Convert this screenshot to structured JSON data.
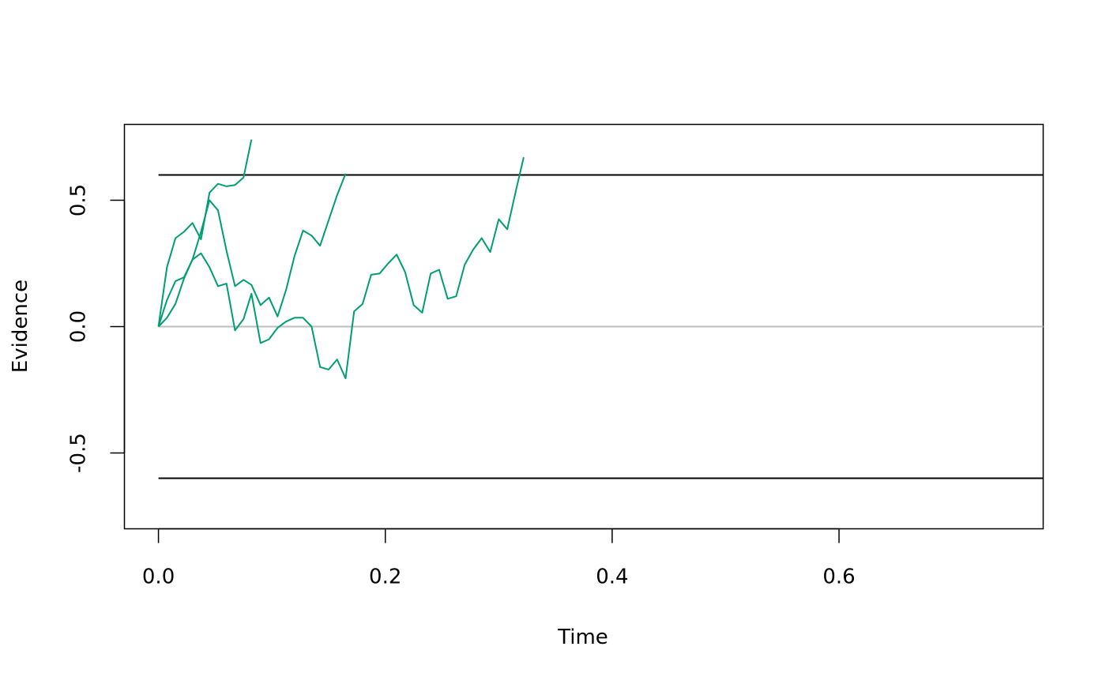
{
  "chart_data": {
    "type": "line",
    "title": "",
    "xlabel": "Time",
    "ylabel": "Evidence",
    "xlim": [
      -0.03,
      0.78
    ],
    "ylim": [
      -0.8,
      0.8
    ],
    "x_ticks": [
      {
        "value": 0.0,
        "label": "0.0"
      },
      {
        "value": 0.2,
        "label": "0.2"
      },
      {
        "value": 0.4,
        "label": "0.4"
      },
      {
        "value": 0.6,
        "label": "0.6"
      }
    ],
    "y_ticks": [
      {
        "value": -0.5,
        "label": "-0.5"
      },
      {
        "value": 0.0,
        "label": "0.0"
      },
      {
        "value": 0.5,
        "label": "0.5"
      }
    ],
    "grid": false,
    "legend": "none",
    "colors": {
      "series": "#009E73",
      "boundary": "#000000",
      "baseline": "#BEBEBE",
      "frame": "#000000"
    },
    "reference_lines": [
      {
        "kind": "upper-boundary",
        "y": 0.6,
        "x_start": 0.0,
        "color": "#000000"
      },
      {
        "kind": "lower-boundary",
        "y": -0.6,
        "x_start": 0.0,
        "color": "#000000"
      },
      {
        "kind": "baseline",
        "y": 0.0,
        "x_start": 0.0,
        "color": "#BEBEBE"
      }
    ],
    "series": [
      {
        "x": [
          0.0,
          0.0075,
          0.015,
          0.0225,
          0.03,
          0.0375,
          0.045,
          0.0525,
          0.06,
          0.0675,
          0.075,
          0.082
        ],
        "y": [
          0.0,
          0.235,
          0.35,
          0.375,
          0.41,
          0.345,
          0.53,
          0.565,
          0.555,
          0.56,
          0.59,
          0.74
        ]
      },
      {
        "x": [
          0.0,
          0.0075,
          0.015,
          0.0225,
          0.03,
          0.0375,
          0.045,
          0.0525,
          0.06,
          0.0675,
          0.075,
          0.082,
          0.09,
          0.0975,
          0.105,
          0.1125,
          0.12,
          0.1275,
          0.135,
          0.1425,
          0.15,
          0.1575,
          0.165
        ],
        "y": [
          0.0,
          0.105,
          0.18,
          0.195,
          0.265,
          0.375,
          0.5,
          0.46,
          0.3,
          0.16,
          0.185,
          0.165,
          0.085,
          0.115,
          0.04,
          0.145,
          0.28,
          0.38,
          0.36,
          0.32,
          0.42,
          0.52,
          0.605
        ]
      },
      {
        "x": [
          0.0,
          0.0075,
          0.015,
          0.0225,
          0.03,
          0.0375,
          0.045,
          0.0525,
          0.06,
          0.0675,
          0.075,
          0.082,
          0.09,
          0.0975,
          0.105,
          0.1125,
          0.12,
          0.1275,
          0.135,
          0.1425,
          0.15,
          0.1575,
          0.165,
          0.1725,
          0.18,
          0.1875,
          0.195,
          0.2025,
          0.21,
          0.2175,
          0.225,
          0.2325,
          0.24,
          0.2475,
          0.255,
          0.2625,
          0.27,
          0.2775,
          0.285,
          0.2925,
          0.3,
          0.3075,
          0.315,
          0.322
        ],
        "y": [
          0.0,
          0.035,
          0.09,
          0.19,
          0.265,
          0.29,
          0.235,
          0.16,
          0.17,
          -0.015,
          0.03,
          0.13,
          -0.065,
          -0.05,
          -0.005,
          0.02,
          0.035,
          0.035,
          0.0,
          -0.16,
          -0.17,
          -0.13,
          -0.205,
          0.06,
          0.09,
          0.205,
          0.21,
          0.25,
          0.285,
          0.215,
          0.085,
          0.055,
          0.21,
          0.225,
          0.11,
          0.12,
          0.245,
          0.305,
          0.35,
          0.295,
          0.425,
          0.385,
          0.535,
          0.67
        ]
      }
    ]
  }
}
